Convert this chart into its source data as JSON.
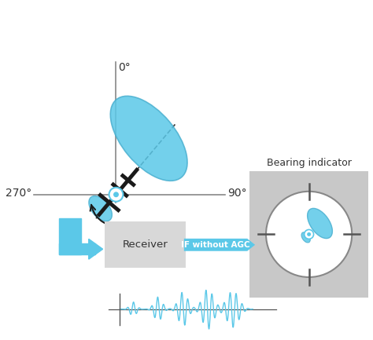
{
  "bg_color": "#ffffff",
  "blue_color": "#5bc8e8",
  "blue_edge": "#4ab0d0",
  "gray_color": "#d3d3d3",
  "black": "#1a1a1a",
  "axis_color": "#888888",
  "dark_text": "#333333",
  "label_0": "0°",
  "label_90": "90°",
  "label_270": "270°",
  "receiver_text": "Receiver",
  "if_text": "IF without AGC",
  "bearing_text": "Bearing indicator"
}
